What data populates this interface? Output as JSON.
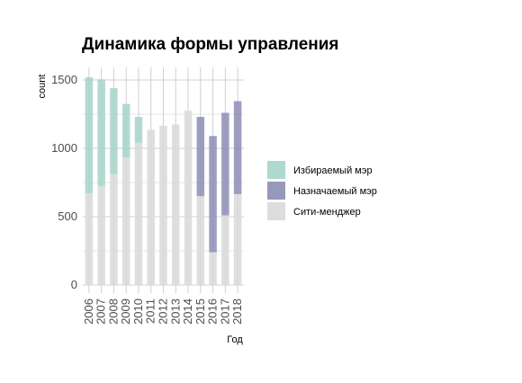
{
  "chart_data": {
    "type": "bar",
    "stacked": true,
    "title": "Динамика формы управления",
    "xlabel": "Год",
    "ylabel": "count",
    "categories": [
      "2006",
      "2007",
      "2008",
      "2009",
      "2010",
      "2011",
      "2012",
      "2013",
      "2014",
      "2015",
      "2016",
      "2017",
      "2018"
    ],
    "ylim": [
      0,
      1600
    ],
    "yticks": [
      0,
      500,
      1000,
      1500
    ],
    "grid": true,
    "legend_position": "right",
    "series": [
      {
        "name": "Избираемый мэр",
        "color": "#a6d4c9",
        "values": [
          850,
          780,
          630,
          390,
          190,
          0,
          0,
          0,
          0,
          0,
          0,
          0,
          0
        ]
      },
      {
        "name": "Назначаемый мэр",
        "color": "#8d8db5",
        "values": [
          0,
          0,
          0,
          0,
          0,
          0,
          0,
          0,
          0,
          580,
          850,
          750,
          680
        ]
      },
      {
        "name": "Сити-менджер",
        "color": "#d9d9d9",
        "values": [
          670,
          725,
          810,
          935,
          1040,
          1135,
          1165,
          1175,
          1275,
          650,
          240,
          510,
          665
        ]
      }
    ]
  }
}
